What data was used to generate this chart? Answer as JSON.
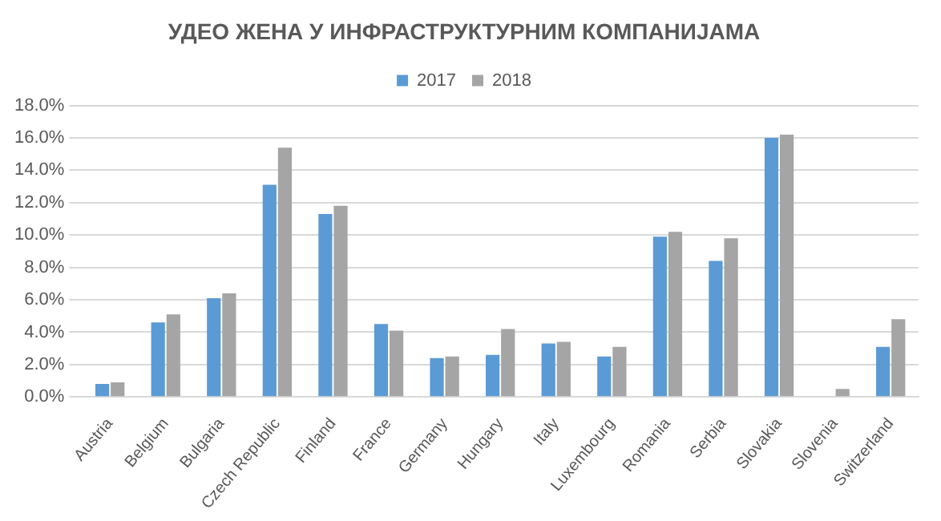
{
  "chart_data": {
    "type": "bar",
    "title": "УДЕО ЖЕНА У ИНФРАСТРУКТУРНИМ КОМПАНИЈАМА",
    "categories": [
      "Austria",
      "Belgium",
      "Bulgaria",
      "Czech Republic",
      "Finland",
      "France",
      "Germany",
      "Hungary",
      "Italy",
      "Luxembourg",
      "Romania",
      "Serbia",
      "Slovakia",
      "Slovenia",
      "Switzerland"
    ],
    "series": [
      {
        "name": "2017",
        "color": "#5b9bd5",
        "values": [
          0.8,
          4.6,
          6.1,
          13.1,
          11.3,
          4.5,
          2.4,
          2.6,
          3.3,
          2.5,
          9.9,
          8.4,
          16.0,
          null,
          3.1
        ]
      },
      {
        "name": "2018",
        "color": "#a5a5a5",
        "values": [
          0.9,
          5.1,
          6.4,
          15.4,
          11.8,
          4.1,
          2.5,
          4.2,
          3.4,
          3.1,
          10.2,
          9.8,
          16.2,
          0.5,
          4.8
        ]
      }
    ],
    "ylim": [
      0,
      18
    ],
    "yticks": [
      {
        "value": 0,
        "label": "0.0%"
      },
      {
        "value": 2,
        "label": "2.0%"
      },
      {
        "value": 4,
        "label": "4.0%"
      },
      {
        "value": 6,
        "label": "6.0%"
      },
      {
        "value": 8,
        "label": "8.0%"
      },
      {
        "value": 10,
        "label": "10.0%"
      },
      {
        "value": 12,
        "label": "12.0%"
      },
      {
        "value": 14,
        "label": "14.0%"
      },
      {
        "value": 16,
        "label": "16.0%"
      },
      {
        "value": 18,
        "label": "18.0%"
      }
    ],
    "grid": "y",
    "legend": "top"
  }
}
